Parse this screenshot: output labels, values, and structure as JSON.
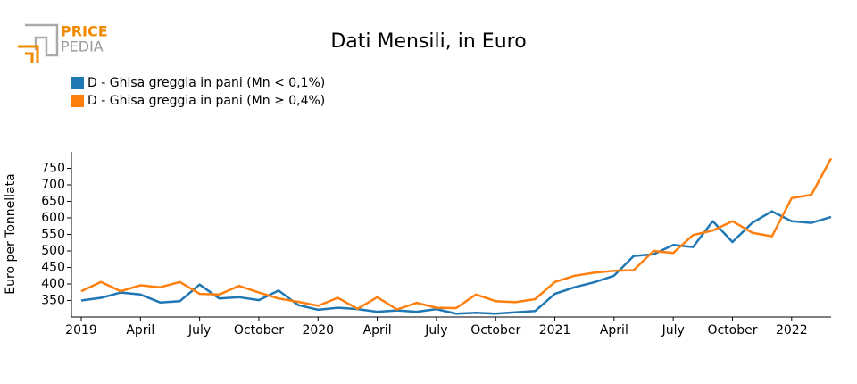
{
  "logo": {
    "line1": "PRICE",
    "line2": "PEDIA"
  },
  "chart_data": {
    "type": "line",
    "title": "Dati Mensili, in Euro",
    "y_label": "Euro per Tonnellata",
    "categories": [
      "2019",
      null,
      null,
      "April",
      null,
      null,
      "July",
      null,
      null,
      "October",
      null,
      null,
      "2020",
      null,
      null,
      "April",
      null,
      null,
      "July",
      null,
      null,
      "October",
      null,
      null,
      "2021",
      null,
      null,
      "April",
      null,
      null,
      "July",
      null,
      null,
      "October",
      null,
      null,
      "2022",
      null,
      null
    ],
    "series": [
      {
        "name": "D - Ghisa greggia in pani (Mn < 0,1%)",
        "color": "#1f77b4",
        "values": [
          350,
          358,
          374,
          368,
          344,
          348,
          398,
          356,
          360,
          351,
          380,
          336,
          322,
          328,
          324,
          316,
          320,
          316,
          324,
          310,
          313,
          310,
          314,
          318,
          370,
          390,
          405,
          425,
          485,
          490,
          518,
          512,
          590,
          527,
          585,
          620,
          590,
          585,
          603
        ]
      },
      {
        "name": "D - Ghisa greggia in pani (Mn ≥ 0,4%)",
        "color": "#ff7f0e",
        "values": [
          378,
          406,
          378,
          396,
          390,
          406,
          370,
          368,
          394,
          374,
          356,
          346,
          334,
          358,
          325,
          360,
          323,
          343,
          328,
          327,
          368,
          348,
          345,
          354,
          406,
          425,
          434,
          440,
          442,
          500,
          494,
          548,
          562,
          590,
          555,
          544,
          660,
          670,
          780
        ]
      }
    ],
    "ylim": [
      300,
      800
    ],
    "yticks": [
      350,
      400,
      450,
      500,
      550,
      600,
      650,
      700,
      750
    ],
    "grid": false,
    "legend": "top-left"
  }
}
